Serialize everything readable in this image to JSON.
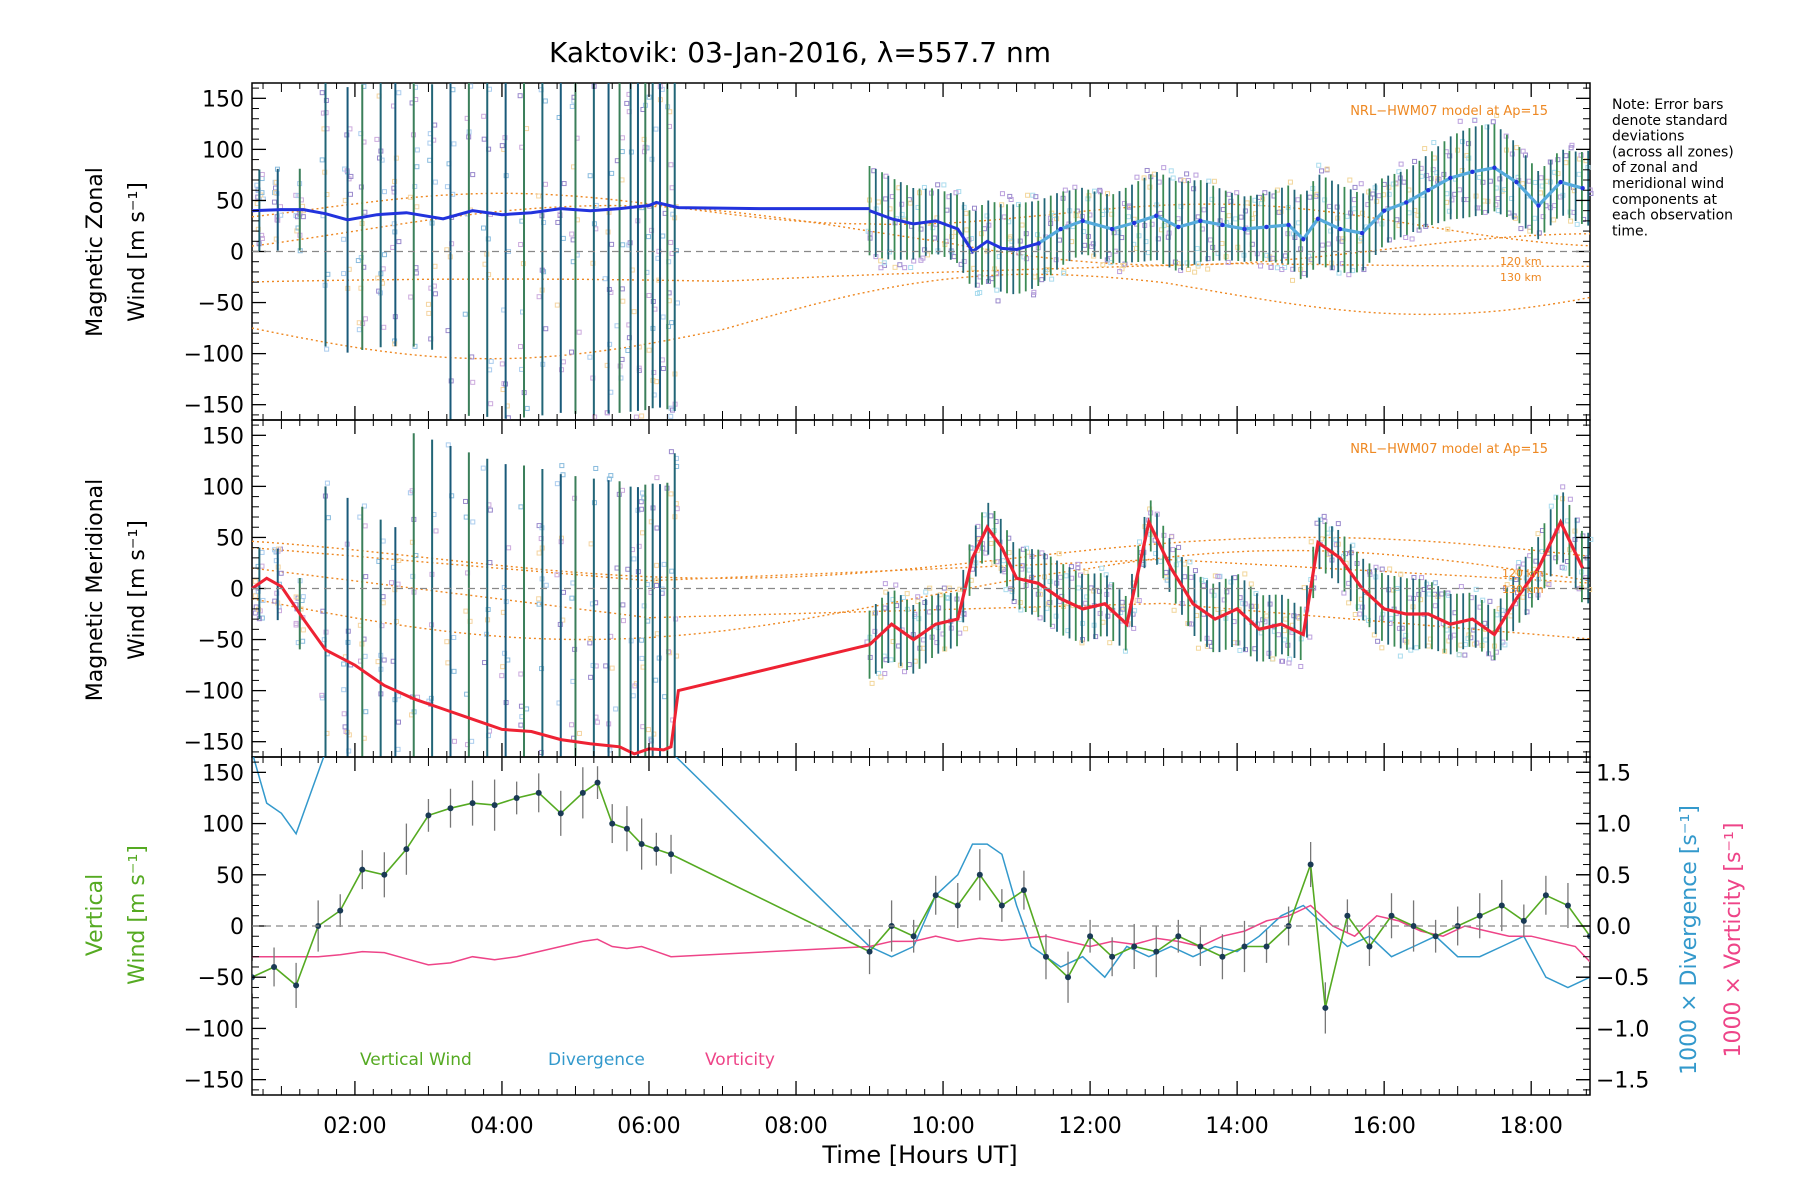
{
  "title": "Kaktovik: 03-Jan-2016, λ=557.7 nm",
  "note": "Note: Error bars denote standard deviations (across all zones) of zonal and meridional wind components at each observation time.",
  "x_axis": {
    "label": "Time [Hours UT]",
    "ticks": [
      "02:00",
      "04:00",
      "06:00",
      "08:00",
      "10:00",
      "12:00",
      "14:00",
      "16:00",
      "18:00"
    ]
  },
  "y_ticks": [
    "150",
    "100",
    "50",
    "0",
    "−50",
    "−100",
    "−150"
  ],
  "right_ticks": [
    "1.5",
    "1.0",
    "0.5",
    "0.0",
    "−0.5",
    "−1.0",
    "−1.5"
  ],
  "panels": {
    "zonal": {
      "ylabel_1": "Magnetic Zonal",
      "ylabel_2": "Wind [m s⁻¹]",
      "model_label": "NRL−HWM07 model at Ap=15",
      "alt_120": "120 km",
      "alt_130": "130 km"
    },
    "meridional": {
      "ylabel_1": "Magnetic Meridional",
      "ylabel_2": "Wind [m s⁻¹]",
      "model_label": "NRL−HWM07 model at Ap=15",
      "alt_120": "120 km",
      "alt_130": "130 km"
    },
    "vertical": {
      "ylabel_1": "Vertical",
      "ylabel_2": "Wind [m s⁻¹]",
      "right_label_div": "1000 × Divergence [s⁻¹]",
      "right_label_vort": "1000 × Vorticity [s⁻¹]",
      "legend": {
        "vertical": "Vertical Wind",
        "divergence": "Divergence",
        "vorticity": "Vorticity"
      }
    }
  },
  "colors": {
    "zonal": "#2233dd",
    "zonal_light": "#55aadd",
    "meridional": "#ee2233",
    "vertical": "#55aa22",
    "divergence": "#3399cc",
    "vorticity": "#ee4488",
    "model": "#ee8822",
    "errorbar": "#226677",
    "scatter": "#9988cc"
  },
  "chart_data": [
    {
      "type": "line",
      "title": "Kaktovik: 03-Jan-2016, λ=557.7 nm",
      "panel": "zonal",
      "ylabel": "Magnetic Zonal Wind [m s⁻¹]",
      "xlabel": "",
      "xlim": [
        0.6,
        18.8
      ],
      "ylim": [
        -165,
        165
      ],
      "series": [
        {
          "x": [
            0.6,
            1.0,
            1.3,
            1.6,
            1.9,
            2.3,
            2.7,
            3.2,
            3.6,
            4.0,
            4.4,
            4.8,
            5.2,
            5.6,
            6.0,
            6.1,
            6.4,
            7.5,
            9.0
          ],
          "values": [
            40,
            41,
            41,
            37,
            31,
            36,
            38,
            32,
            40,
            36,
            38,
            42,
            40,
            42,
            45,
            48,
            43,
            42,
            42
          ]
        },
        {
          "x": [
            9.0,
            9.3,
            9.6,
            9.9,
            10.2,
            10.4,
            10.6,
            10.8,
            11.0,
            11.3,
            11.6,
            11.9,
            12.3,
            12.6,
            12.9,
            13.2,
            13.5,
            13.8,
            14.1,
            14.4,
            14.7,
            14.9,
            15.1,
            15.4,
            15.7,
            16.0,
            16.3,
            16.6,
            16.9,
            17.2,
            17.5,
            17.8,
            18.1,
            18.4,
            18.7
          ],
          "values": [
            40,
            32,
            27,
            30,
            22,
            0,
            10,
            3,
            2,
            8,
            22,
            30,
            22,
            28,
            35,
            24,
            30,
            26,
            22,
            24,
            26,
            12,
            32,
            22,
            18,
            40,
            48,
            60,
            72,
            78,
            82,
            68,
            45,
            68,
            62
          ]
        }
      ]
    },
    {
      "type": "line",
      "panel": "meridional",
      "ylabel": "Magnetic Meridional Wind [m s⁻¹]",
      "xlabel": "",
      "xlim": [
        0.6,
        18.8
      ],
      "ylim": [
        -165,
        165
      ],
      "series": [
        {
          "x": [
            0.6,
            0.8,
            1.0,
            1.3,
            1.6,
            2.0,
            2.4,
            2.8,
            3.2,
            3.6,
            4.0,
            4.4,
            4.8,
            5.2,
            5.6,
            5.8,
            6.0,
            6.2,
            6.3,
            6.4,
            9.0
          ],
          "values": [
            0,
            10,
            2,
            -30,
            -60,
            -75,
            -95,
            -108,
            -118,
            -128,
            -138,
            -140,
            -148,
            -152,
            -155,
            -162,
            -157,
            -158,
            -155,
            -100,
            -55
          ]
        },
        {
          "x": [
            9.0,
            9.3,
            9.6,
            9.9,
            10.2,
            10.4,
            10.6,
            10.8,
            11.0,
            11.3,
            11.6,
            11.9,
            12.2,
            12.5,
            12.8,
            13.1,
            13.4,
            13.7,
            14.0,
            14.3,
            14.6,
            14.9,
            15.1,
            15.4,
            15.7,
            16.0,
            16.3,
            16.6,
            16.9,
            17.2,
            17.5,
            17.8,
            18.1,
            18.4,
            18.7
          ],
          "values": [
            -55,
            -35,
            -50,
            -35,
            -30,
            30,
            60,
            40,
            10,
            5,
            -10,
            -20,
            -15,
            -35,
            65,
            20,
            -15,
            -30,
            -20,
            -40,
            -35,
            -45,
            45,
            30,
            0,
            -20,
            -25,
            -25,
            -35,
            -30,
            -45,
            -10,
            20,
            65,
            20
          ]
        }
      ]
    },
    {
      "type": "line",
      "panel": "vertical",
      "xlabel": "Time [Hours UT]",
      "ylabel": "Vertical Wind [m s⁻¹]",
      "y2label": "1000 × Divergence [s⁻¹] / 1000 × Vorticity [s⁻¹]",
      "xlim": [
        0.6,
        18.8
      ],
      "ylim": [
        -165,
        165
      ],
      "y2lim": [
        -1.5,
        1.5
      ],
      "series": [
        {
          "name": "Vertical Wind",
          "x": [
            0.6,
            0.9,
            1.2,
            1.5,
            1.8,
            2.1,
            2.4,
            2.7,
            3.0,
            3.3,
            3.6,
            3.9,
            4.2,
            4.5,
            4.8,
            5.1,
            5.3,
            5.5,
            5.7,
            5.9,
            6.1,
            6.3,
            9.0,
            9.3,
            9.6,
            9.9,
            10.2,
            10.5,
            10.8,
            11.1,
            11.4,
            11.7,
            12.0,
            12.3,
            12.6,
            12.9,
            13.2,
            13.5,
            13.8,
            14.1,
            14.4,
            14.7,
            15.0,
            15.2,
            15.5,
            15.8,
            16.1,
            16.4,
            16.7,
            17.0,
            17.3,
            17.6,
            17.9,
            18.2,
            18.5,
            18.8
          ],
          "values": [
            -50,
            -40,
            -58,
            0,
            15,
            55,
            50,
            75,
            108,
            115,
            120,
            118,
            125,
            130,
            110,
            130,
            140,
            100,
            95,
            80,
            75,
            70,
            -25,
            0,
            -10,
            30,
            20,
            50,
            20,
            35,
            -30,
            -50,
            -10,
            -30,
            -20,
            -25,
            -10,
            -20,
            -30,
            -20,
            -20,
            0,
            60,
            -80,
            10,
            -20,
            10,
            0,
            -10,
            0,
            10,
            20,
            5,
            30,
            20,
            -10
          ]
        },
        {
          "name": "Divergence",
          "axis": "right",
          "x": [
            0.6,
            0.8,
            1.0,
            1.2,
            1.4,
            1.6,
            6.3,
            9.0,
            9.3,
            9.6,
            9.9,
            10.2,
            10.4,
            10.6,
            10.8,
            11.0,
            11.2,
            11.4,
            11.6,
            11.9,
            12.2,
            12.5,
            12.8,
            13.1,
            13.4,
            13.7,
            14.0,
            14.3,
            14.6,
            14.9,
            15.2,
            15.5,
            15.8,
            16.1,
            16.4,
            16.7,
            17.0,
            17.3,
            17.6,
            17.9,
            18.2,
            18.5,
            18.8
          ],
          "values": [
            1.7,
            1.2,
            1.1,
            0.9,
            1.3,
            1.7,
            1.7,
            -0.2,
            -0.3,
            -0.2,
            0.3,
            0.5,
            0.8,
            0.8,
            0.7,
            0.2,
            -0.2,
            -0.3,
            -0.4,
            -0.3,
            -0.5,
            -0.2,
            -0.3,
            -0.2,
            -0.3,
            -0.2,
            -0.25,
            -0.1,
            0.1,
            0.2,
            0.0,
            -0.2,
            -0.1,
            -0.3,
            -0.2,
            -0.1,
            -0.3,
            -0.3,
            -0.2,
            -0.1,
            -0.5,
            -0.6,
            -0.5
          ]
        },
        {
          "name": "Vorticity",
          "axis": "right",
          "x": [
            0.6,
            0.9,
            1.2,
            1.5,
            1.8,
            2.1,
            2.4,
            2.7,
            3.0,
            3.3,
            3.6,
            3.9,
            4.2,
            4.5,
            4.8,
            5.1,
            5.3,
            5.5,
            5.7,
            5.9,
            6.1,
            6.3,
            9.0,
            9.3,
            9.6,
            9.9,
            10.2,
            10.5,
            10.8,
            11.1,
            11.4,
            11.7,
            12.0,
            12.3,
            12.6,
            12.9,
            13.2,
            13.5,
            13.8,
            14.1,
            14.4,
            14.7,
            15.0,
            15.3,
            15.6,
            15.9,
            16.2,
            16.5,
            16.8,
            17.1,
            17.4,
            17.7,
            18.0,
            18.3,
            18.6,
            18.8
          ],
          "values": [
            -0.3,
            -0.3,
            -0.3,
            -0.3,
            -0.28,
            -0.25,
            -0.26,
            -0.32,
            -0.38,
            -0.36,
            -0.3,
            -0.33,
            -0.3,
            -0.25,
            -0.2,
            -0.15,
            -0.13,
            -0.2,
            -0.22,
            -0.2,
            -0.25,
            -0.3,
            -0.2,
            -0.15,
            -0.15,
            -0.1,
            -0.15,
            -0.12,
            -0.14,
            -0.12,
            -0.1,
            -0.15,
            -0.2,
            -0.15,
            -0.18,
            -0.12,
            -0.15,
            -0.2,
            -0.1,
            -0.05,
            0.05,
            0.1,
            0.2,
            0.0,
            -0.1,
            0.1,
            0.05,
            -0.05,
            -0.1,
            0.0,
            -0.05,
            -0.1,
            -0.1,
            -0.15,
            -0.2,
            -0.35
          ]
        }
      ]
    }
  ]
}
